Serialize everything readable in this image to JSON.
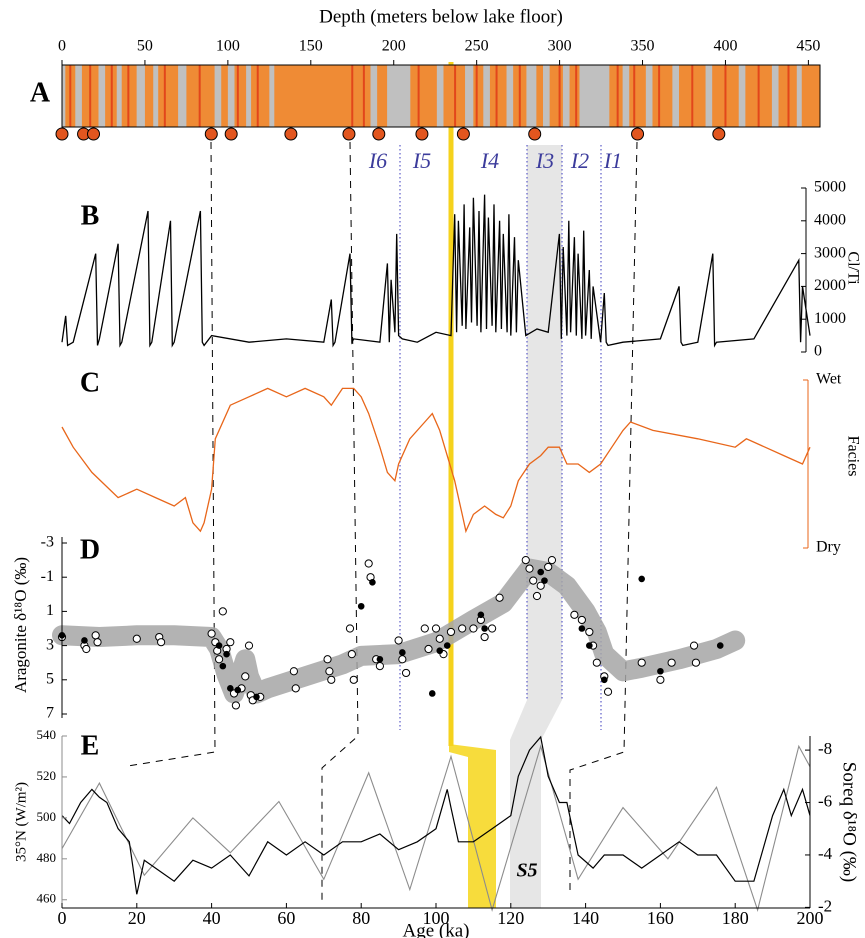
{
  "chart_data": [
    {
      "type": "strip",
      "panel": "A",
      "title": "Depth (meters below lake floor)",
      "xlim": [
        0,
        457
      ],
      "xticks": [
        0,
        50,
        100,
        150,
        200,
        250,
        300,
        350,
        400,
        450
      ],
      "color": "#ef8b35",
      "gray_color": "#c0c0c0",
      "red_color": "#e2461b",
      "sample_color": "#e2561f",
      "gray_intervals": [
        [
          0,
          2
        ],
        [
          8,
          12
        ],
        [
          22,
          26
        ],
        [
          33,
          36
        ],
        [
          45,
          50
        ],
        [
          55,
          58
        ],
        [
          70,
          75
        ],
        [
          92,
          96
        ],
        [
          100,
          104
        ],
        [
          111,
          114
        ],
        [
          125,
          128
        ],
        [
          186,
          190
        ],
        [
          196,
          210
        ],
        [
          226,
          230
        ],
        [
          243,
          248
        ],
        [
          254,
          258
        ],
        [
          268,
          272
        ],
        [
          280,
          286
        ],
        [
          290,
          294
        ],
        [
          302,
          306
        ],
        [
          312,
          330
        ],
        [
          338,
          342
        ],
        [
          352,
          356
        ],
        [
          368,
          372
        ],
        [
          388,
          392
        ],
        [
          408,
          412
        ],
        [
          428,
          432
        ],
        [
          443,
          446
        ]
      ],
      "red_lines": [
        5,
        17,
        30,
        40,
        62,
        83,
        106,
        118,
        175,
        182,
        215,
        237,
        250,
        262,
        276,
        300,
        310,
        335,
        345,
        360,
        380,
        400,
        420,
        438
      ],
      "samples": [
        0,
        13,
        19,
        90,
        102,
        138,
        173,
        191,
        217,
        242,
        285,
        347,
        396
      ]
    },
    {
      "type": "line",
      "panel": "B",
      "ylabel": "Cl/Ti",
      "color": "#000000",
      "annotations": [
        "I6",
        "I5",
        "I4",
        "I3",
        "I2",
        "I1"
      ],
      "xlim": [
        0,
        200
      ],
      "ylim": [
        0,
        5000
      ],
      "yticks": [
        0,
        1000,
        2000,
        3000,
        4000,
        5000
      ],
      "x": [
        0,
        1,
        1.5,
        3,
        9,
        9.5,
        10,
        15,
        15.5,
        16,
        23,
        23.5,
        24,
        29,
        29.5,
        30,
        37,
        37.5,
        38,
        40,
        50,
        60,
        70,
        72,
        72.5,
        73,
        77,
        77.5,
        78,
        85,
        87,
        87.5,
        88,
        89,
        89.5,
        90,
        91,
        95,
        100,
        104,
        105,
        105.5,
        106,
        107,
        107.5,
        108,
        109,
        109.5,
        110,
        111,
        111.5,
        112,
        113,
        113.5,
        114,
        115,
        115.5,
        116,
        117,
        117.5,
        118,
        119,
        119.5,
        120,
        121,
        121.5,
        122,
        124,
        127,
        130,
        133,
        133.5,
        134,
        135,
        135.5,
        136,
        137,
        137.5,
        138,
        139,
        139.5,
        140,
        141,
        141.5,
        142,
        144,
        145,
        145.5,
        146,
        150,
        160,
        165,
        165.5,
        166,
        170,
        174,
        174.5,
        175,
        185,
        197,
        197.5,
        198,
        200
      ],
      "values": [
        300,
        1100,
        200,
        300,
        3000,
        200,
        400,
        3300,
        200,
        300,
        4300,
        200,
        300,
        4000,
        200,
        300,
        4300,
        300,
        200,
        500,
        300,
        400,
        300,
        1600,
        200,
        300,
        3000,
        300,
        400,
        300,
        2700,
        300,
        2200,
        600,
        3600,
        500,
        400,
        300,
        600,
        500,
        4200,
        600,
        4000,
        800,
        4500,
        700,
        3800,
        900,
        4700,
        800,
        4300,
        600,
        4800,
        700,
        4100,
        800,
        4500,
        600,
        4000,
        700,
        3600,
        600,
        4200,
        500,
        3500,
        600,
        2800,
        500,
        700,
        600,
        3600,
        400,
        3200,
        500,
        4000,
        600,
        3500,
        500,
        3000,
        400,
        3700,
        500,
        2500,
        400,
        2000,
        300,
        1800,
        300,
        200,
        300,
        400,
        2000,
        300,
        200,
        300,
        3000,
        200,
        300,
        400,
        2800,
        300,
        2000,
        500
      ]
    },
    {
      "type": "line",
      "panel": "C",
      "ylabel": "Facies",
      "color": "#e8661a",
      "xlim": [
        0,
        200
      ],
      "ylim": [
        0,
        1
      ],
      "yticks": [
        {
          "value": 1,
          "label": "Wet"
        },
        {
          "value": 0,
          "label": "Dry"
        }
      ],
      "x": [
        0,
        3,
        8,
        15,
        20,
        25,
        30,
        33,
        35,
        37,
        38,
        40,
        41,
        45,
        50,
        55,
        60,
        65,
        70,
        72,
        75,
        78,
        80,
        82,
        85,
        87,
        89,
        90,
        93,
        97,
        99,
        101,
        103,
        105,
        107,
        108,
        110,
        113,
        116,
        118,
        120,
        122,
        125,
        128,
        130,
        133,
        135,
        138,
        141,
        144,
        147,
        150,
        152,
        158,
        170,
        180,
        183,
        188,
        193,
        198,
        200
      ],
      "values": [
        0.72,
        0.6,
        0.45,
        0.3,
        0.35,
        0.3,
        0.25,
        0.3,
        0.15,
        0.1,
        0.15,
        0.35,
        0.65,
        0.85,
        0.9,
        0.95,
        0.9,
        0.95,
        0.9,
        0.85,
        0.95,
        0.95,
        0.9,
        0.8,
        0.6,
        0.45,
        0.4,
        0.5,
        0.65,
        0.75,
        0.8,
        0.7,
        0.55,
        0.4,
        0.2,
        0.1,
        0.2,
        0.25,
        0.2,
        0.18,
        0.25,
        0.4,
        0.5,
        0.55,
        0.6,
        0.6,
        0.5,
        0.5,
        0.45,
        0.5,
        0.6,
        0.7,
        0.75,
        0.7,
        0.65,
        0.6,
        0.65,
        0.6,
        0.55,
        0.5,
        0.6
      ]
    },
    {
      "type": "scatter",
      "panel": "D",
      "ylabel": "Aragonite δ¹⁸O (‰)",
      "xlim": [
        0,
        200
      ],
      "ylim": [
        -3,
        7
      ],
      "y_inverted": true,
      "yticks": [
        -3,
        -1,
        1,
        3,
        5,
        7
      ],
      "trend": {
        "color": "#a6a6a6",
        "x": [
          0,
          10,
          20,
          30,
          40,
          42,
          44,
          46,
          48,
          49,
          50,
          52,
          55,
          65,
          75,
          80,
          90,
          100,
          110,
          118,
          125,
          130,
          135,
          140,
          143,
          145,
          150,
          155,
          165,
          175,
          180
        ],
        "values": [
          2.4,
          2.5,
          2.4,
          2.4,
          2.5,
          3.2,
          4.7,
          5.8,
          4.5,
          3.8,
          4.8,
          5.8,
          5.5,
          4.8,
          4.1,
          3.6,
          3.5,
          2.8,
          1.5,
          0.5,
          -1.5,
          -1.3,
          -0.5,
          1.0,
          2.2,
          3.5,
          4.5,
          4.3,
          3.8,
          3.2,
          2.7
        ]
      },
      "series": [
        {
          "marker": "open",
          "color": "#000000",
          "x": [
            0,
            6,
            6.5,
            9,
            9.5,
            20,
            26,
            26.5,
            40,
            41,
            41.5,
            42,
            43,
            44,
            45,
            46,
            46.5,
            48,
            49,
            50,
            50.5,
            51,
            53,
            62,
            62.5,
            71,
            71.5,
            72,
            77,
            77.5,
            78,
            82,
            82.5,
            84,
            85,
            90,
            91,
            92,
            97,
            98,
            100,
            101,
            102,
            104,
            107,
            110,
            112,
            113,
            115,
            117,
            124,
            125,
            126,
            127,
            128,
            130,
            131,
            137,
            139,
            141,
            142,
            143,
            145,
            146,
            155,
            160,
            163,
            169,
            169.5
          ],
          "values": [
            2.5,
            3.0,
            3.2,
            2.4,
            2.8,
            2.6,
            2.5,
            2.8,
            2.3,
            2.8,
            3.3,
            3.8,
            1.0,
            3.2,
            2.8,
            5.8,
            6.5,
            5.5,
            4.8,
            3.0,
            5.9,
            6.2,
            6.0,
            4.5,
            5.5,
            3.8,
            4.5,
            5.0,
            2.0,
            3.5,
            5.0,
            -1.8,
            -1.0,
            3.8,
            4.2,
            2.7,
            3.8,
            4.6,
            2.0,
            3.2,
            2.0,
            2.6,
            3.5,
            2.2,
            2.0,
            2.0,
            1.5,
            2.5,
            2.0,
            0.2,
            -2.0,
            -1.5,
            -0.8,
            0.1,
            -0.5,
            -1.6,
            -2.0,
            1.2,
            1.5,
            2.2,
            3.0,
            4.0,
            4.8,
            5.7,
            4.0,
            5.0,
            4.0,
            3.0,
            4.0
          ]
        },
        {
          "marker": "filled",
          "color": "#000000",
          "x": [
            0,
            6,
            42,
            43,
            44,
            45,
            47,
            52,
            80,
            83,
            85,
            91,
            99,
            101,
            103,
            112,
            113,
            128,
            129,
            139,
            141,
            145,
            155,
            160,
            176
          ],
          "values": [
            2.4,
            2.7,
            3.0,
            4.2,
            3.5,
            5.5,
            5.6,
            6.0,
            0.7,
            -0.7,
            3.8,
            3.4,
            5.8,
            3.3,
            3.0,
            1.2,
            2.0,
            -1.3,
            -0.8,
            2.0,
            3.0,
            5.0,
            -0.9,
            4.5,
            3.0
          ]
        }
      ]
    },
    {
      "type": "dual-line",
      "panel": "E",
      "xlabel": "Age (ka)",
      "ylabel": "35°N (W/m²)",
      "y2label": "Soreq δ¹⁸O (‰)",
      "annotation": "S5",
      "xlim": [
        0,
        200
      ],
      "xticks": [
        0,
        20,
        40,
        60,
        80,
        100,
        120,
        140,
        160,
        180,
        200
      ],
      "ylim": [
        455,
        540
      ],
      "yticks": [
        460,
        480,
        500,
        520,
        540
      ],
      "ycolor": "#8c8c8c",
      "y2lim": [
        -8.5,
        -1.9
      ],
      "y2_inverted": true,
      "y2ticks": [
        -8,
        -6,
        -4,
        -2
      ],
      "series": [
        {
          "color": "#8c8c8c",
          "x": [
            0,
            10,
            22,
            35,
            45,
            58,
            70,
            82,
            93,
            104,
            115,
            128,
            138,
            150,
            162,
            175,
            186,
            197,
            200
          ],
          "values": [
            485,
            517,
            472,
            500,
            483,
            508,
            470,
            522,
            465,
            530,
            455,
            535,
            470,
            505,
            480,
            515,
            455,
            535,
            525
          ]
        },
        {
          "color": "#000000",
          "axis": "y2",
          "x": [
            0,
            2,
            5,
            8,
            10,
            12,
            15,
            18,
            20,
            22,
            25,
            30,
            35,
            40,
            45,
            50,
            55,
            60,
            65,
            70,
            75,
            80,
            85,
            90,
            95,
            100,
            103,
            104,
            106,
            110,
            115,
            120,
            122,
            125,
            128,
            130,
            133,
            135,
            138,
            142,
            145,
            150,
            155,
            160,
            165,
            170,
            175,
            180,
            185,
            190,
            193,
            195,
            198,
            200
          ],
          "values": [
            -5.5,
            -5.2,
            -6,
            -6.5,
            -6.2,
            -6,
            -5,
            -4.5,
            -2.5,
            -3.8,
            -3.5,
            -3,
            -3.8,
            -3.5,
            -4,
            -3.2,
            -4.5,
            -4,
            -4.5,
            -4,
            -4.5,
            -4.5,
            -4.8,
            -4.2,
            -4.5,
            -5,
            -6.5,
            -5.8,
            -4.5,
            -4.5,
            -5,
            -5.5,
            -7,
            -8,
            -8.5,
            -7,
            -6,
            -6,
            -4,
            -3.5,
            -4,
            -4,
            -3.5,
            -4,
            -4.5,
            -4,
            -4,
            -3,
            -3,
            -5.5,
            -6.5,
            -5.5,
            -6.5,
            -5.5
          ]
        }
      ]
    }
  ]
}
